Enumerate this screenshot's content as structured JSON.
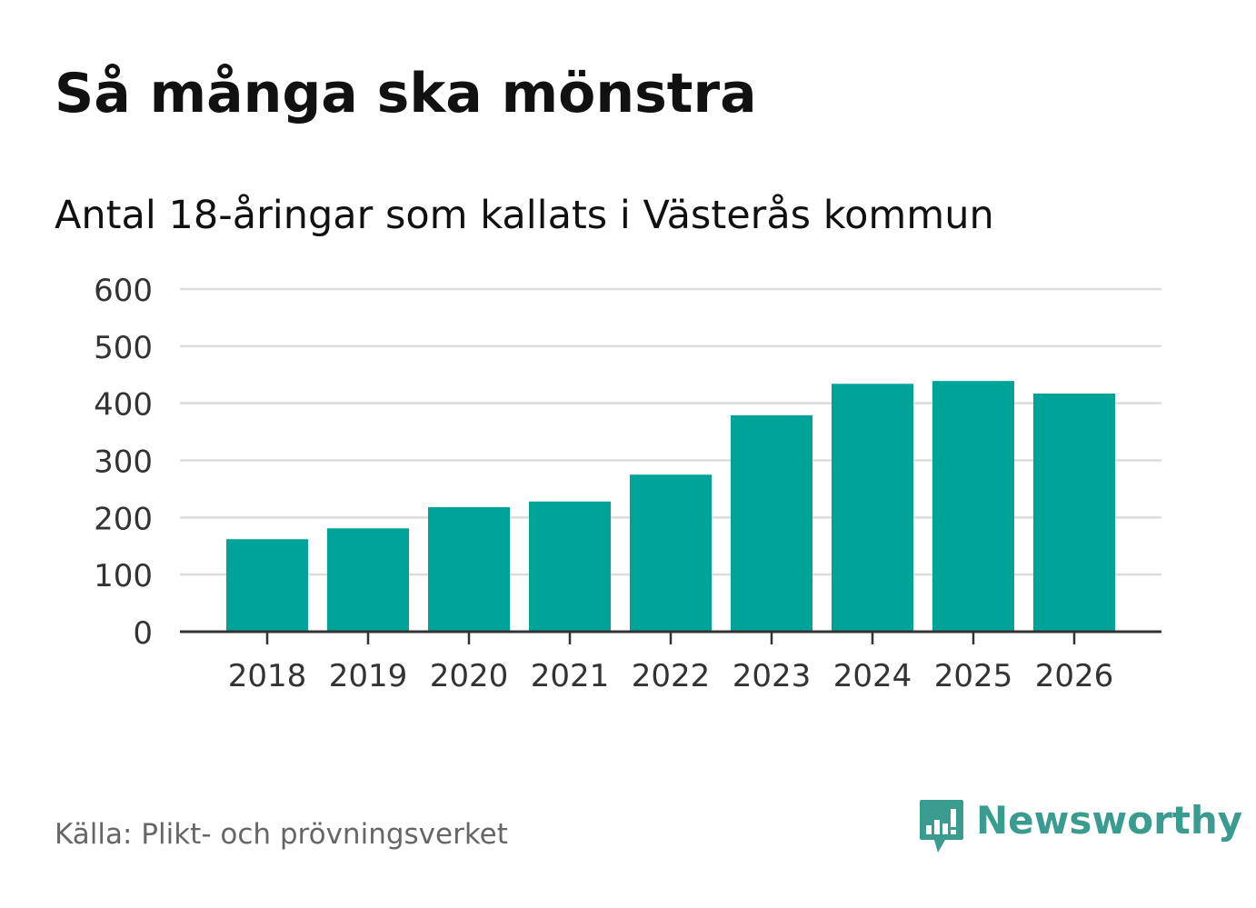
{
  "title": "Så många ska mönstra",
  "subtitle": "Antal 18-åringar som kallats i Västerås kommun",
  "source": "Källa: Plikt- och prövningsverket",
  "logo_text": "Newsworthy",
  "colors": {
    "bar": "#00a398",
    "logo": "#3a9b8f"
  },
  "chart_data": {
    "type": "bar",
    "title": "Så många ska mönstra",
    "subtitle": "Antal 18-åringar som kallats i Västerås kommun",
    "xlabel": "",
    "ylabel": "",
    "categories": [
      "2018",
      "2019",
      "2020",
      "2021",
      "2022",
      "2023",
      "2024",
      "2025",
      "2026"
    ],
    "values": [
      162,
      181,
      218,
      228,
      275,
      379,
      434,
      439,
      417
    ],
    "ylim": [
      0,
      600
    ],
    "yticks": [
      0,
      100,
      200,
      300,
      400,
      500,
      600
    ],
    "grid": true
  }
}
